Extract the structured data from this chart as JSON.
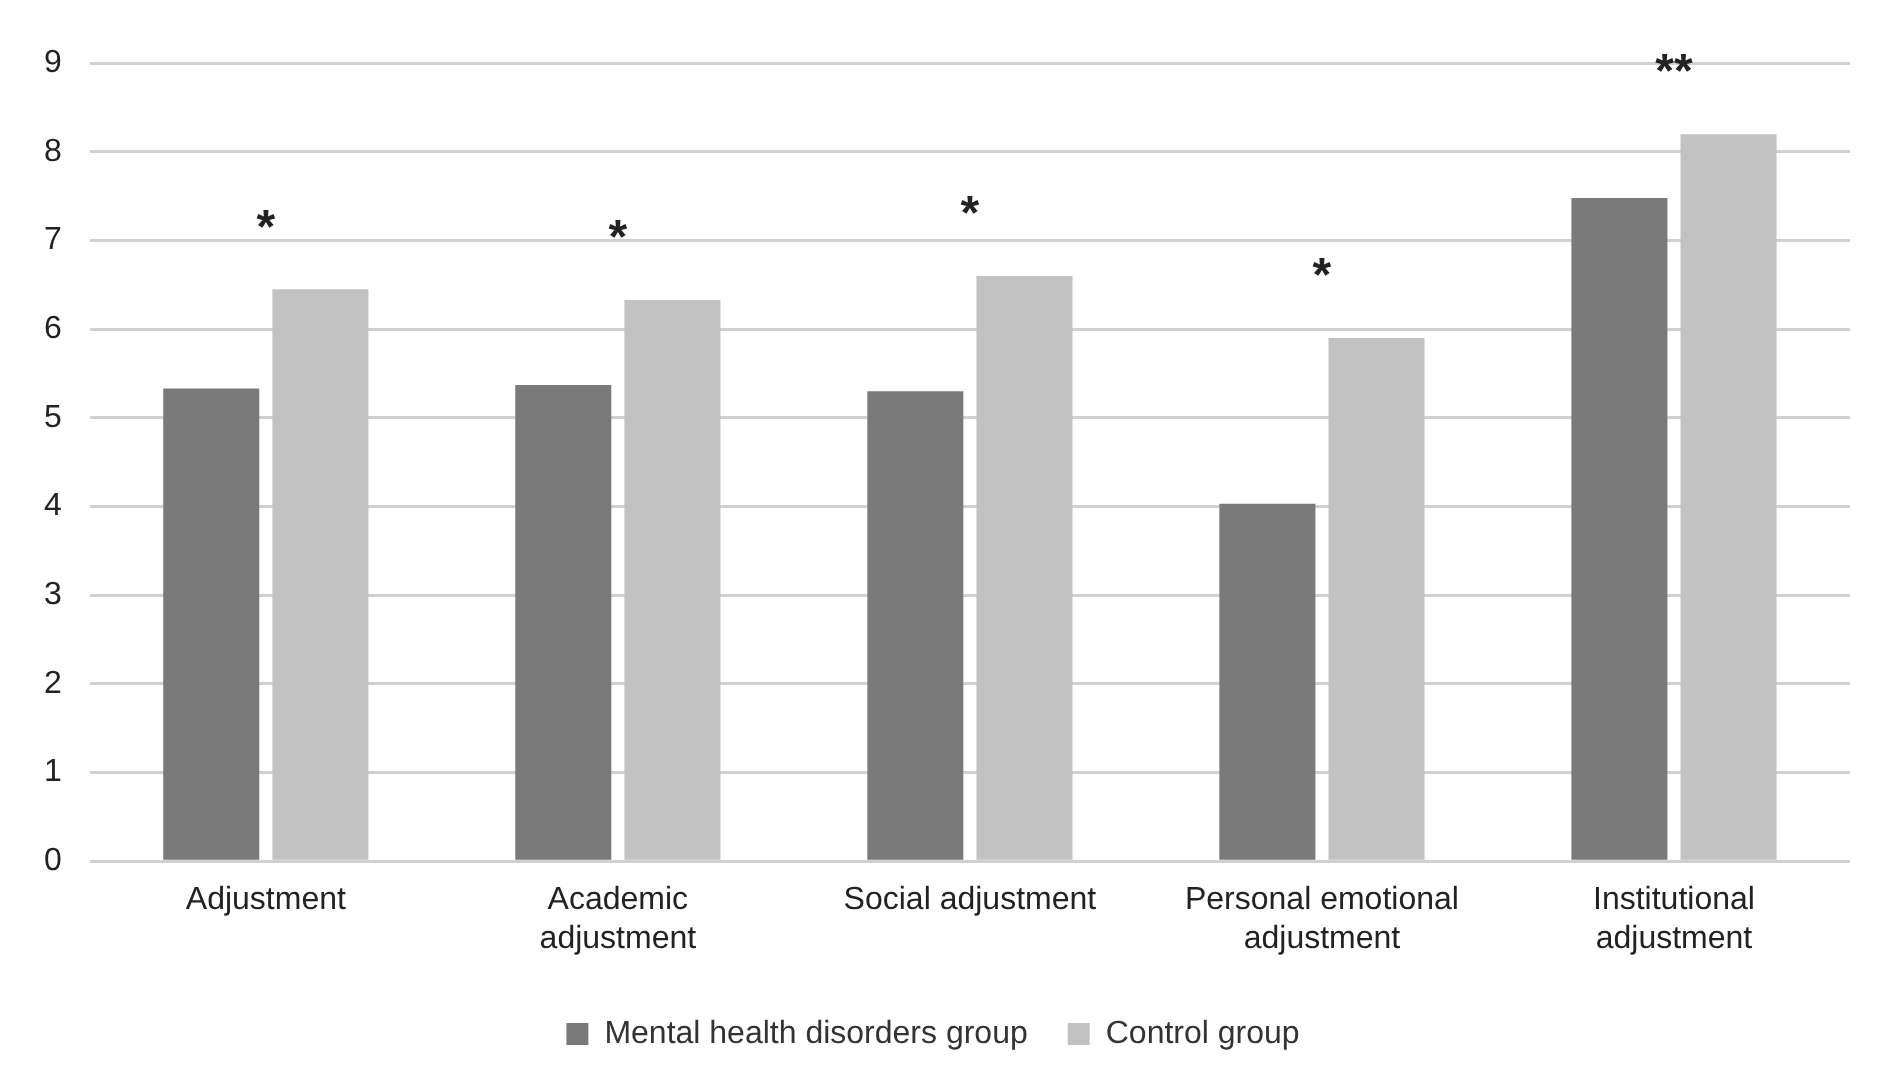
{
  "chart_data": {
    "type": "bar",
    "categories": [
      "Adjustment",
      "Academic adjustment",
      "Social adjustment",
      "Personal emotional adjustment",
      "Institutional adjustment"
    ],
    "series": [
      {
        "name": "Mental health disorders group",
        "color": "#7a7a7a",
        "values": [
          5.33,
          5.37,
          5.3,
          4.03,
          7.48
        ]
      },
      {
        "name": "Control group",
        "color": "#c2c2c2",
        "values": [
          6.45,
          6.33,
          6.6,
          5.9,
          8.2
        ]
      }
    ],
    "ylim": [
      0,
      9
    ],
    "yticks": [
      0,
      1,
      2,
      3,
      4,
      5,
      6,
      7,
      8,
      9
    ],
    "grid": "y",
    "legend": "bottom",
    "annotations": [
      "*",
      "*",
      "*",
      "*",
      "**"
    ]
  }
}
